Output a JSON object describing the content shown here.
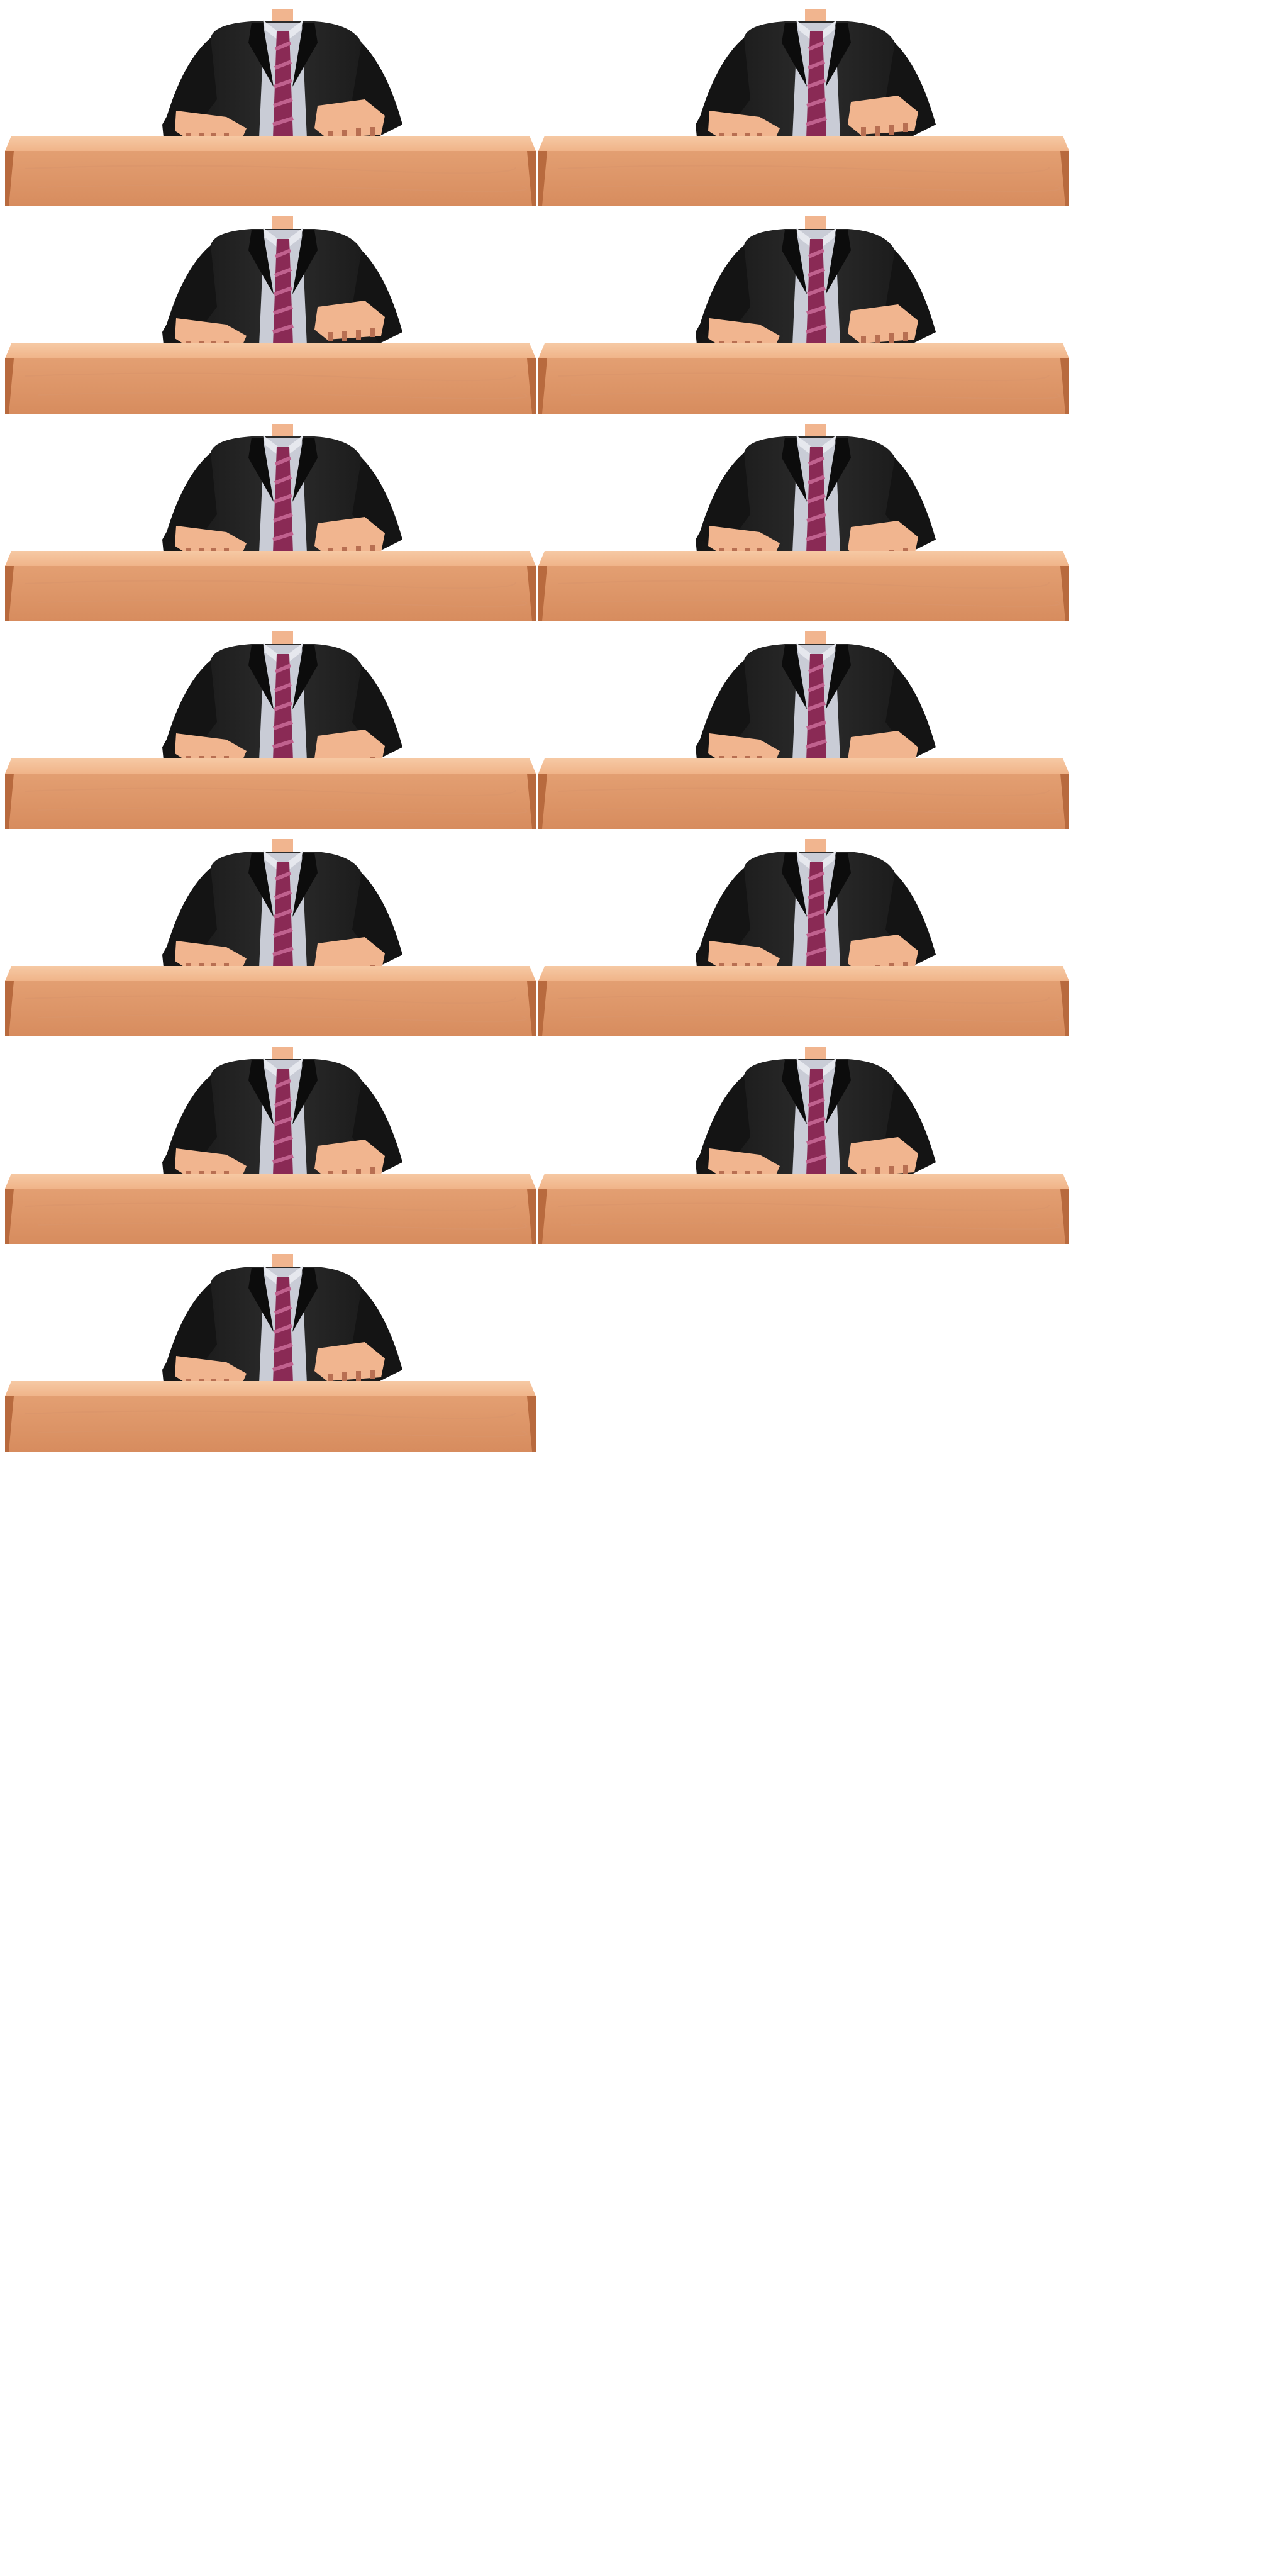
{
  "sprite_sheet": {
    "frame_count": 13,
    "columns": 2,
    "frames": [
      {
        "right_hand": "raised"
      },
      {
        "right_hand": "raised"
      },
      {
        "right_hand": "raised"
      },
      {
        "right_hand": "raised"
      },
      {
        "right_hand": "raised"
      },
      {
        "right_hand": "raised"
      },
      {
        "right_hand": "raised"
      },
      {
        "right_hand": "raised"
      },
      {
        "right_hand": "raised"
      },
      {
        "right_hand": "raised"
      },
      {
        "right_hand": "raised"
      },
      {
        "right_hand": "raised"
      },
      {
        "right_hand": "raised"
      }
    ]
  },
  "colors": {
    "background": "#ffffff",
    "suit": "#141414",
    "suit_highlight": "#2c2c2c",
    "shirt": "#c9ccd6",
    "tie": "#8a2a55",
    "tie_stripe": "#c0618e",
    "skin": "#f1b58f",
    "skin_shadow": "#b86f52",
    "desk_top": "#f0b489",
    "desk_front": "#e39f72",
    "desk_edge": "#b86a3e"
  }
}
